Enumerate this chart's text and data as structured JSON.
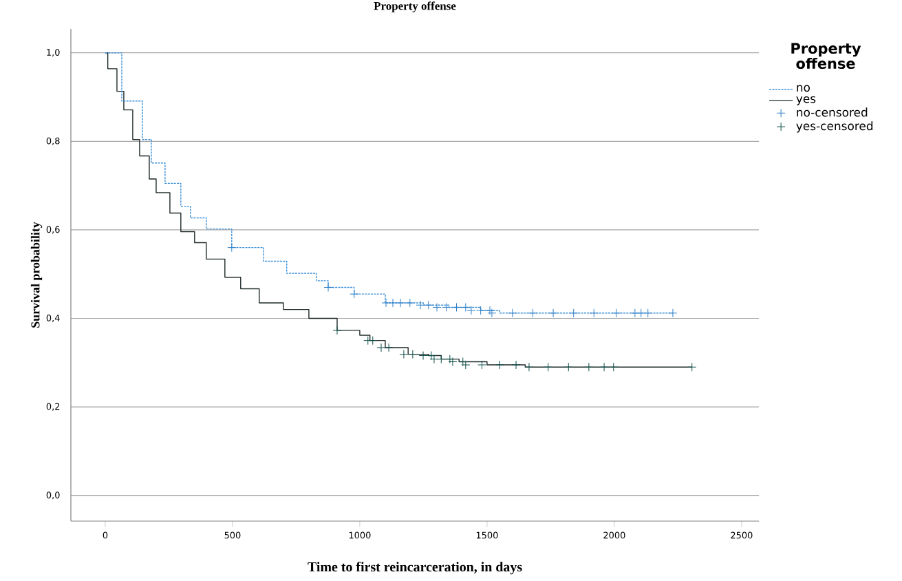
{
  "chart_data": {
    "type": "step",
    "title": "Property offense",
    "xlabel": "Time to first reincarceration, in days",
    "ylabel": "Survival probability",
    "legend_title": "Property offense",
    "xlim": [
      -135,
      2568
    ],
    "ylim": [
      -0.058,
      1.054
    ],
    "xticks": [
      0,
      500,
      1000,
      1500,
      2000,
      2500
    ],
    "yticks": [
      {
        "value": 0,
        "label": "0,0"
      },
      {
        "value": 0.2,
        "label": "0,2"
      },
      {
        "value": 0.4,
        "label": "0,4"
      },
      {
        "value": 0.6,
        "label": "0,6"
      },
      {
        "value": 0.8,
        "label": "0,8"
      },
      {
        "value": 1.0,
        "label": "1,0"
      }
    ],
    "grid": "y",
    "legend": "right",
    "series": [
      {
        "name": "no",
        "color": "#3b8fd6",
        "line_style": "dashed",
        "x": [
          0,
          65,
          146,
          181,
          235,
          297,
          335,
          397,
          497,
          622,
          713,
          830,
          876,
          978,
          1100,
          1250,
          1350,
          1475,
          1550,
          2230
        ],
        "values": [
          1.0,
          0.891,
          0.804,
          0.751,
          0.705,
          0.653,
          0.627,
          0.602,
          0.56,
          0.529,
          0.502,
          0.485,
          0.47,
          0.455,
          0.435,
          0.43,
          0.425,
          0.418,
          0.412,
          0.412
        ]
      },
      {
        "name": "yes",
        "color": "#1f2a2a",
        "line_style": "solid",
        "x": [
          0,
          10,
          46,
          73,
          108,
          135,
          173,
          200,
          254,
          297,
          351,
          397,
          470,
          532,
          605,
          700,
          800,
          911,
          1000,
          1040,
          1100,
          1190,
          1270,
          1320,
          1390,
          1500,
          1650,
          2305
        ],
        "values": [
          1.0,
          0.964,
          0.913,
          0.871,
          0.804,
          0.767,
          0.715,
          0.684,
          0.638,
          0.596,
          0.571,
          0.534,
          0.493,
          0.467,
          0.435,
          0.42,
          0.4,
          0.373,
          0.362,
          0.35,
          0.334,
          0.319,
          0.316,
          0.308,
          0.302,
          0.295,
          0.29,
          0.29
        ]
      },
      {
        "name": "no-censored",
        "type": "scatter",
        "marker": "cross",
        "color": "#2f7fc8",
        "x": [
          497,
          876,
          978,
          1103,
          1130,
          1160,
          1197,
          1238,
          1270,
          1303,
          1340,
          1380,
          1416,
          1438,
          1475,
          1511,
          1519,
          1600,
          1680,
          1760,
          1840,
          1920,
          2008,
          2081,
          2105,
          2132,
          2230
        ],
        "values": [
          0.56,
          0.47,
          0.455,
          0.435,
          0.435,
          0.435,
          0.435,
          0.43,
          0.43,
          0.425,
          0.425,
          0.425,
          0.425,
          0.418,
          0.418,
          0.418,
          0.412,
          0.412,
          0.412,
          0.412,
          0.412,
          0.412,
          0.412,
          0.412,
          0.412,
          0.412,
          0.412
        ]
      },
      {
        "name": "yes-censored",
        "type": "scatter",
        "marker": "cross",
        "color": "#0d4d48",
        "x": [
          911,
          1032,
          1051,
          1084,
          1114,
          1173,
          1208,
          1249,
          1281,
          1292,
          1320,
          1354,
          1365,
          1405,
          1416,
          1480,
          1550,
          1614,
          1665,
          1740,
          1820,
          1900,
          1960,
          1997,
          2305
        ],
        "values": [
          0.373,
          0.35,
          0.35,
          0.334,
          0.334,
          0.319,
          0.319,
          0.316,
          0.316,
          0.308,
          0.308,
          0.308,
          0.302,
          0.302,
          0.295,
          0.295,
          0.295,
          0.295,
          0.29,
          0.29,
          0.29,
          0.29,
          0.29,
          0.29,
          0.29
        ]
      }
    ]
  }
}
